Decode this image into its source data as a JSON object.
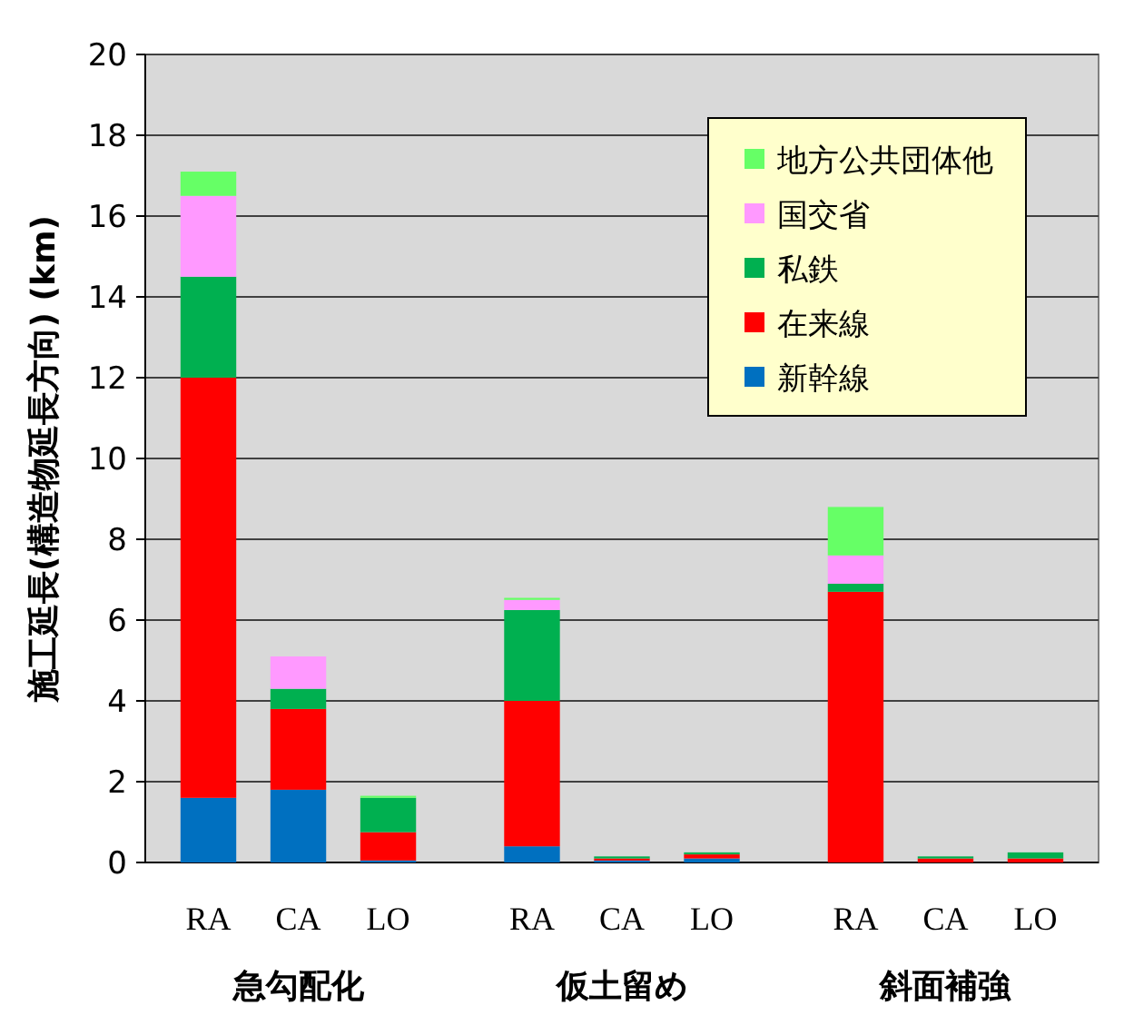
{
  "chart_data": {
    "type": "bar",
    "stacked": true,
    "ylabel": "施工延長(構造物延長方向) (km)",
    "categories": [
      "RA",
      "CA",
      "LO",
      "RA",
      "CA",
      "LO",
      "RA",
      "CA",
      "LO"
    ],
    "series": [
      {
        "name": "新幹線",
        "color": "#0070c0",
        "values": [
          1.6,
          1.8,
          0.05,
          0.4,
          0.05,
          0.1,
          0,
          0,
          0
        ]
      },
      {
        "name": "在来線",
        "color": "#ff0000",
        "values": [
          10.4,
          2.0,
          0.7,
          3.6,
          0.05,
          0.1,
          6.7,
          0.1,
          0.1
        ]
      },
      {
        "name": "私鉄",
        "color": "#00b050",
        "values": [
          2.5,
          0.5,
          0.85,
          2.25,
          0.05,
          0.05,
          0.2,
          0.05,
          0.15
        ]
      },
      {
        "name": "国交省",
        "color": "#ff99ff",
        "values": [
          2.0,
          0.8,
          0,
          0.25,
          0,
          0,
          0.7,
          0,
          0
        ]
      },
      {
        "name": "地方公共団体他",
        "color": "#66ff66",
        "values": [
          0.6,
          0,
          0.05,
          0.05,
          0,
          0,
          1.2,
          0,
          0
        ]
      }
    ],
    "ylim": [
      0,
      20
    ],
    "yticks": [
      0,
      2,
      4,
      6,
      8,
      10,
      12,
      14,
      16,
      18,
      20
    ],
    "grid": "y",
    "legend": "top right",
    "annotations": [
      "急勾配化",
      "仮土留め",
      "斜面補強"
    ]
  }
}
